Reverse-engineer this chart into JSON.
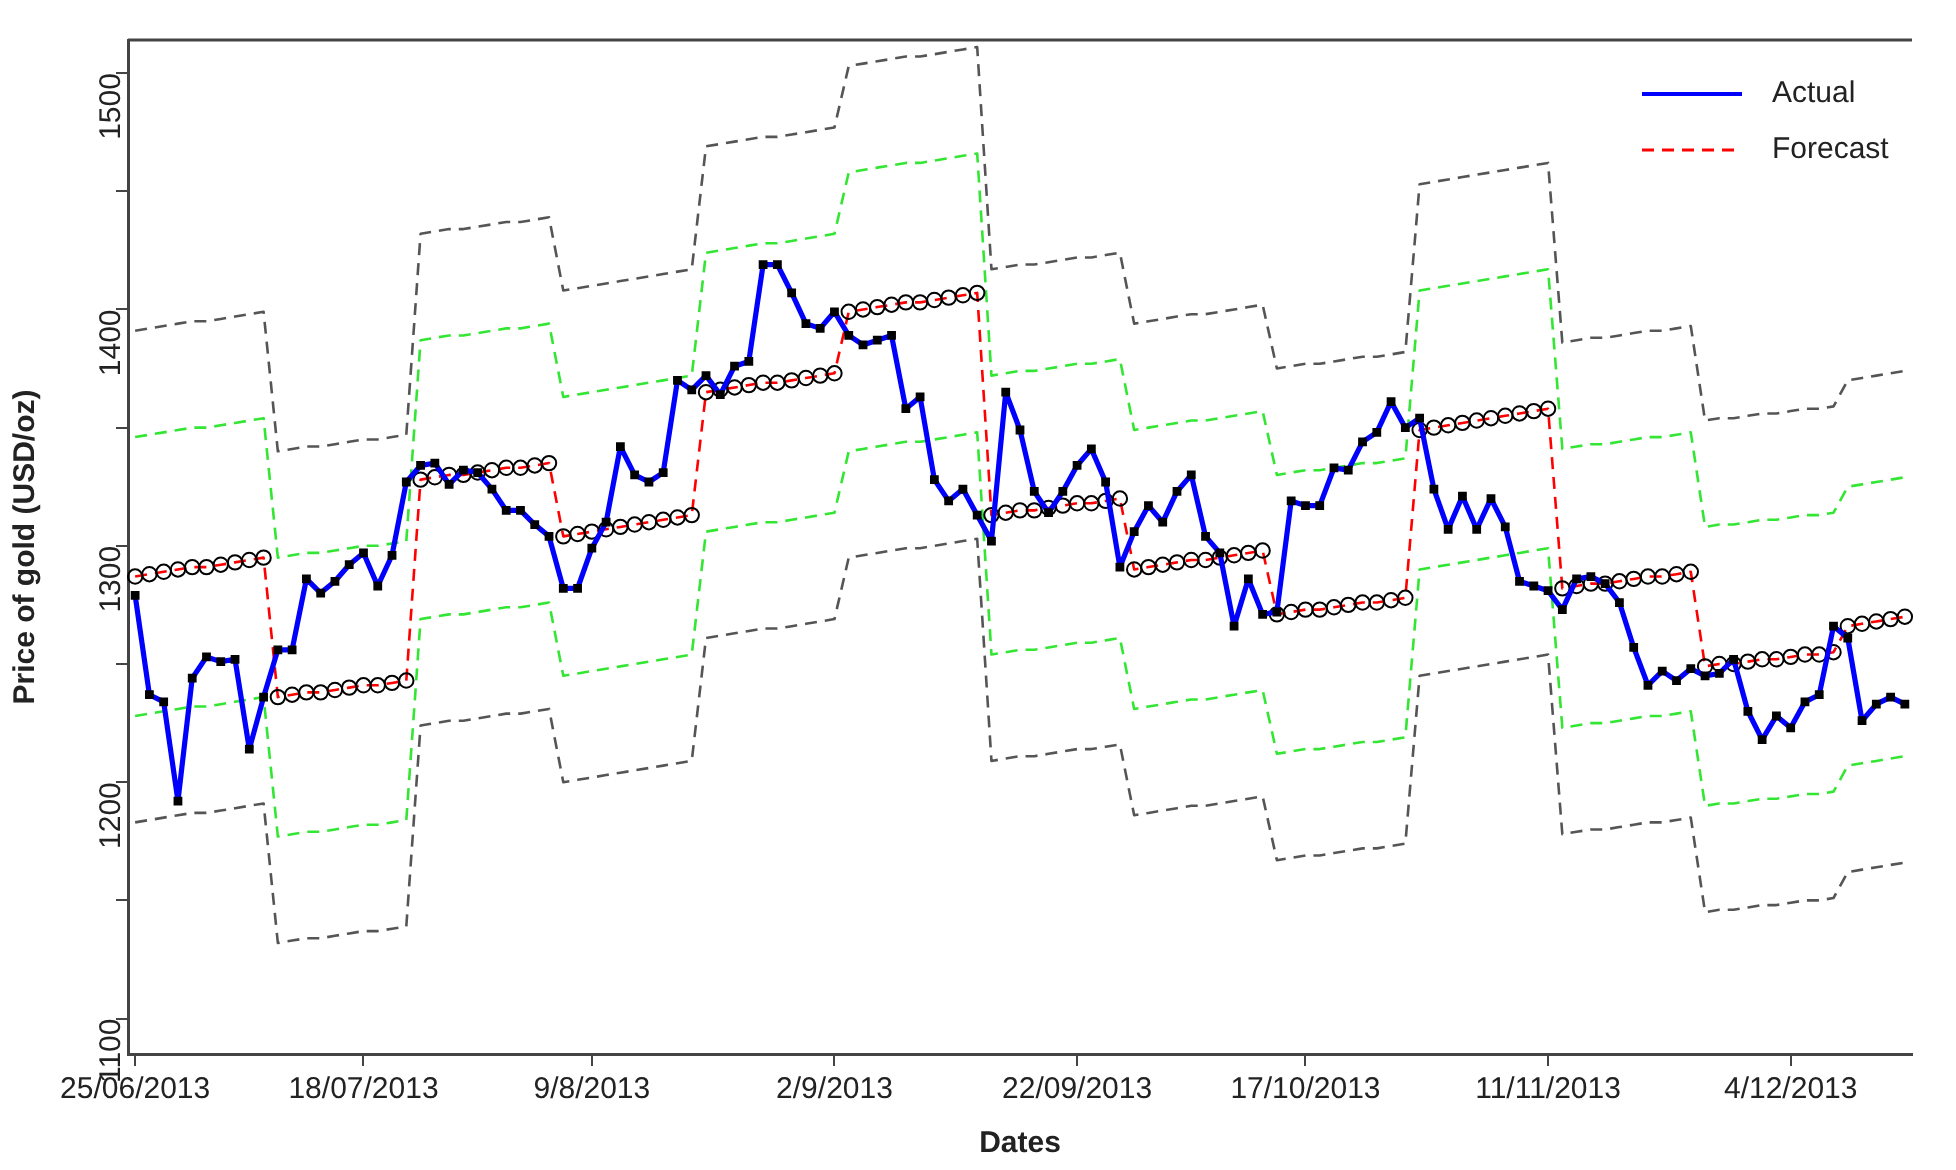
{
  "chart_data": {
    "type": "line",
    "xlabel": "Dates",
    "ylabel": "Price of gold (USD/oz)",
    "categories": [
      "25/06/2013",
      null,
      null,
      null,
      null,
      null,
      null,
      null,
      null,
      null,
      null,
      null,
      null,
      null,
      null,
      null,
      "18/07/2013",
      null,
      null,
      null,
      null,
      null,
      null,
      null,
      null,
      null,
      null,
      null,
      null,
      null,
      null,
      null,
      "9/8/2013",
      null,
      null,
      null,
      null,
      null,
      null,
      null,
      null,
      null,
      null,
      null,
      null,
      null,
      null,
      null,
      null,
      "2/9/2013",
      null,
      null,
      null,
      null,
      null,
      null,
      null,
      null,
      null,
      null,
      null,
      null,
      null,
      null,
      null,
      null,
      "22/09/2013",
      null,
      null,
      null,
      null,
      null,
      null,
      null,
      null,
      null,
      null,
      null,
      null,
      null,
      null,
      null,
      "17/10/2013",
      null,
      null,
      null,
      null,
      null,
      null,
      null,
      null,
      null,
      null,
      null,
      null,
      null,
      null,
      null,
      null,
      "11/11/2013",
      null,
      null,
      null,
      null,
      null,
      null,
      null,
      null,
      null,
      null,
      null,
      null,
      null,
      null,
      null,
      null,
      "4/12/2013",
      null,
      null,
      null,
      null,
      null,
      null,
      null,
      null
    ],
    "ylim": [
      1085,
      1514
    ],
    "yticks": [
      1100,
      {
        "value": 1150,
        "label": null
      },
      1200,
      {
        "value": 1250,
        "label": null
      },
      1300,
      {
        "value": 1350,
        "label": null
      },
      1400,
      {
        "value": 1450,
        "label": null
      },
      1500
    ],
    "legend": "top right",
    "series": [
      {
        "name": "Actual",
        "color": "#0000ff",
        "marker": "square",
        "line_style": "solid",
        "values": [
          1279,
          1237,
          1234,
          1192,
          1244,
          1253,
          1251,
          1252,
          1214,
          1236,
          1256,
          1256,
          1286,
          1280,
          1285,
          1292,
          1297,
          1283,
          1296,
          1327,
          1334,
          1335,
          1326,
          1332,
          1331,
          1324,
          1315,
          1315,
          1309,
          1304,
          1282,
          1282,
          1299,
          1310,
          1342,
          1330,
          1327,
          1331,
          1370,
          1366,
          1372,
          1364,
          1376,
          1378,
          1419,
          1419,
          1407,
          1394,
          1392,
          1399,
          1389,
          1385,
          1387,
          1389,
          1358,
          1363,
          1328,
          1319,
          1324,
          1313,
          1302,
          1365,
          1349,
          1323,
          1314,
          1323,
          1334,
          1341,
          1327,
          1291,
          1306,
          1317,
          1310,
          1323,
          1330,
          1304,
          1297,
          1266,
          1286,
          1271,
          1272,
          1319,
          1317,
          1317,
          1333,
          1332,
          1344,
          1348,
          1361,
          1350,
          1354,
          1324,
          1307,
          1321,
          1307,
          1320,
          1308,
          1285,
          1283,
          1281,
          1273,
          1286,
          1287,
          1284,
          1276,
          1257,
          1241,
          1247,
          1243,
          1248,
          1245,
          1246,
          1252,
          1230,
          1218,
          1228,
          1223,
          1234,
          1237,
          1266,
          1261,
          1226,
          1233,
          1236,
          1233
        ]
      },
      {
        "name": "Forecast",
        "color": "#ff0000",
        "marker": "circle",
        "line_style": "dashed",
        "values": [
          1287,
          1288,
          1289,
          1290,
          1291,
          1291,
          1292,
          1293,
          1294,
          1295,
          1236,
          1237,
          1238,
          1238,
          1239,
          1240,
          1241,
          1241,
          1242,
          1243,
          1328,
          1329,
          1330,
          1330,
          1331,
          1332,
          1333,
          1333,
          1334,
          1335,
          1304,
          1305,
          1306,
          1307,
          1308,
          1309,
          1310,
          1311,
          1312,
          1313,
          1365,
          1366,
          1367,
          1368,
          1369,
          1369,
          1370,
          1371,
          1372,
          1373,
          1399,
          1400,
          1401,
          1402,
          1403,
          1403,
          1404,
          1405,
          1406,
          1407,
          1313,
          1314,
          1315,
          1315,
          1316,
          1317,
          1318,
          1318,
          1319,
          1320,
          1290,
          1291,
          1292,
          1293,
          1294,
          1294,
          1295,
          1296,
          1297,
          1298,
          1271,
          1272,
          1273,
          1273,
          1274,
          1275,
          1276,
          1276,
          1277,
          1278,
          1349,
          1350,
          1351,
          1352,
          1353,
          1354,
          1355,
          1356,
          1357,
          1358,
          1282,
          1283,
          1284,
          1284,
          1285,
          1286,
          1287,
          1287,
          1288,
          1289,
          1249,
          1250,
          1250,
          1251,
          1252,
          1252,
          1253,
          1254,
          1254,
          1255,
          1266,
          1267,
          1268,
          1269,
          1270
        ]
      },
      {
        "color": "#33e633",
        "marker": "none",
        "line_style": "dashed",
        "values": [
          1346,
          1347,
          1348,
          1349,
          1350,
          1350,
          1351,
          1352,
          1353,
          1354,
          1295,
          1296,
          1297,
          1297,
          1298,
          1299,
          1300,
          1300,
          1301,
          1302,
          1387,
          1388,
          1389,
          1389,
          1390,
          1391,
          1392,
          1392,
          1393,
          1394,
          1363,
          1364,
          1365,
          1366,
          1367,
          1368,
          1369,
          1370,
          1371,
          1372,
          1424,
          1425,
          1426,
          1427,
          1428,
          1428,
          1429,
          1430,
          1431,
          1432,
          1458,
          1459,
          1460,
          1461,
          1462,
          1462,
          1463,
          1464,
          1465,
          1466,
          1372,
          1373,
          1374,
          1374,
          1375,
          1376,
          1377,
          1377,
          1378,
          1379,
          1349,
          1350,
          1351,
          1352,
          1353,
          1353,
          1354,
          1355,
          1356,
          1357,
          1330,
          1331,
          1332,
          1332,
          1333,
          1334,
          1335,
          1335,
          1336,
          1337,
          1408,
          1409,
          1410,
          1411,
          1412,
          1413,
          1414,
          1415,
          1416,
          1417,
          1341,
          1342,
          1343,
          1343,
          1344,
          1345,
          1346,
          1346,
          1347,
          1348,
          1308,
          1309,
          1309,
          1310,
          1311,
          1311,
          1312,
          1313,
          1313,
          1314,
          1325,
          1326,
          1327,
          1328,
          1329
        ]
      },
      {
        "color": "#33e633",
        "marker": "none",
        "line_style": "dashed",
        "values": [
          1228,
          1229,
          1230,
          1231,
          1232,
          1232,
          1233,
          1234,
          1235,
          1236,
          1177,
          1178,
          1179,
          1179,
          1180,
          1181,
          1182,
          1182,
          1183,
          1184,
          1269,
          1270,
          1271,
          1271,
          1272,
          1273,
          1274,
          1274,
          1275,
          1276,
          1245,
          1246,
          1247,
          1248,
          1249,
          1250,
          1251,
          1252,
          1253,
          1254,
          1306,
          1307,
          1308,
          1309,
          1310,
          1310,
          1311,
          1312,
          1313,
          1314,
          1340,
          1341,
          1342,
          1343,
          1344,
          1344,
          1345,
          1346,
          1347,
          1348,
          1254,
          1255,
          1256,
          1256,
          1257,
          1258,
          1259,
          1259,
          1260,
          1261,
          1231,
          1232,
          1233,
          1234,
          1235,
          1235,
          1236,
          1237,
          1238,
          1239,
          1212,
          1213,
          1214,
          1214,
          1215,
          1216,
          1217,
          1217,
          1218,
          1219,
          1290,
          1291,
          1292,
          1293,
          1294,
          1295,
          1296,
          1297,
          1298,
          1299,
          1223,
          1224,
          1225,
          1225,
          1226,
          1227,
          1228,
          1228,
          1229,
          1230,
          1190,
          1191,
          1191,
          1192,
          1193,
          1193,
          1194,
          1195,
          1195,
          1196,
          1207,
          1208,
          1209,
          1210,
          1211
        ]
      },
      {
        "color": "#555555",
        "marker": "none",
        "line_style": "dashed",
        "values": [
          1391,
          1392,
          1393,
          1394,
          1395,
          1395,
          1396,
          1397,
          1398,
          1399,
          1340,
          1341,
          1342,
          1342,
          1343,
          1344,
          1345,
          1345,
          1346,
          1347,
          1432,
          1433,
          1434,
          1434,
          1435,
          1436,
          1437,
          1437,
          1438,
          1439,
          1408,
          1409,
          1410,
          1411,
          1412,
          1413,
          1414,
          1415,
          1416,
          1417,
          1469,
          1470,
          1471,
          1472,
          1473,
          1473,
          1474,
          1475,
          1476,
          1477,
          1503,
          1504,
          1505,
          1506,
          1507,
          1507,
          1508,
          1509,
          1510,
          1511,
          1417,
          1418,
          1419,
          1419,
          1420,
          1421,
          1422,
          1422,
          1423,
          1424,
          1394,
          1395,
          1396,
          1397,
          1398,
          1398,
          1399,
          1400,
          1401,
          1402,
          1375,
          1376,
          1377,
          1377,
          1378,
          1379,
          1380,
          1380,
          1381,
          1382,
          1453,
          1454,
          1455,
          1456,
          1457,
          1458,
          1459,
          1460,
          1461,
          1462,
          1386,
          1387,
          1388,
          1388,
          1389,
          1390,
          1391,
          1391,
          1392,
          1393,
          1353,
          1354,
          1354,
          1355,
          1356,
          1356,
          1357,
          1358,
          1358,
          1359,
          1370,
          1371,
          1372,
          1373,
          1374
        ]
      },
      {
        "color": "#555555",
        "marker": "none",
        "line_style": "dashed",
        "values": [
          1183,
          1184,
          1185,
          1186,
          1187,
          1187,
          1188,
          1189,
          1190,
          1191,
          1132,
          1133,
          1134,
          1134,
          1135,
          1136,
          1137,
          1137,
          1138,
          1139,
          1224,
          1225,
          1226,
          1226,
          1227,
          1228,
          1229,
          1229,
          1230,
          1231,
          1200,
          1201,
          1202,
          1203,
          1204,
          1205,
          1206,
          1207,
          1208,
          1209,
          1261,
          1262,
          1263,
          1264,
          1265,
          1265,
          1266,
          1267,
          1268,
          1269,
          1295,
          1296,
          1297,
          1298,
          1299,
          1299,
          1300,
          1301,
          1302,
          1303,
          1209,
          1210,
          1211,
          1211,
          1212,
          1213,
          1214,
          1214,
          1215,
          1216,
          1186,
          1187,
          1188,
          1189,
          1190,
          1190,
          1191,
          1192,
          1193,
          1194,
          1167,
          1168,
          1169,
          1169,
          1170,
          1171,
          1172,
          1172,
          1173,
          1174,
          1245,
          1246,
          1247,
          1248,
          1249,
          1250,
          1251,
          1252,
          1253,
          1254,
          1178,
          1179,
          1180,
          1180,
          1181,
          1182,
          1183,
          1183,
          1184,
          1185,
          1145,
          1146,
          1146,
          1147,
          1148,
          1148,
          1149,
          1150,
          1150,
          1151,
          1162,
          1163,
          1164,
          1165,
          1166
        ]
      }
    ]
  }
}
